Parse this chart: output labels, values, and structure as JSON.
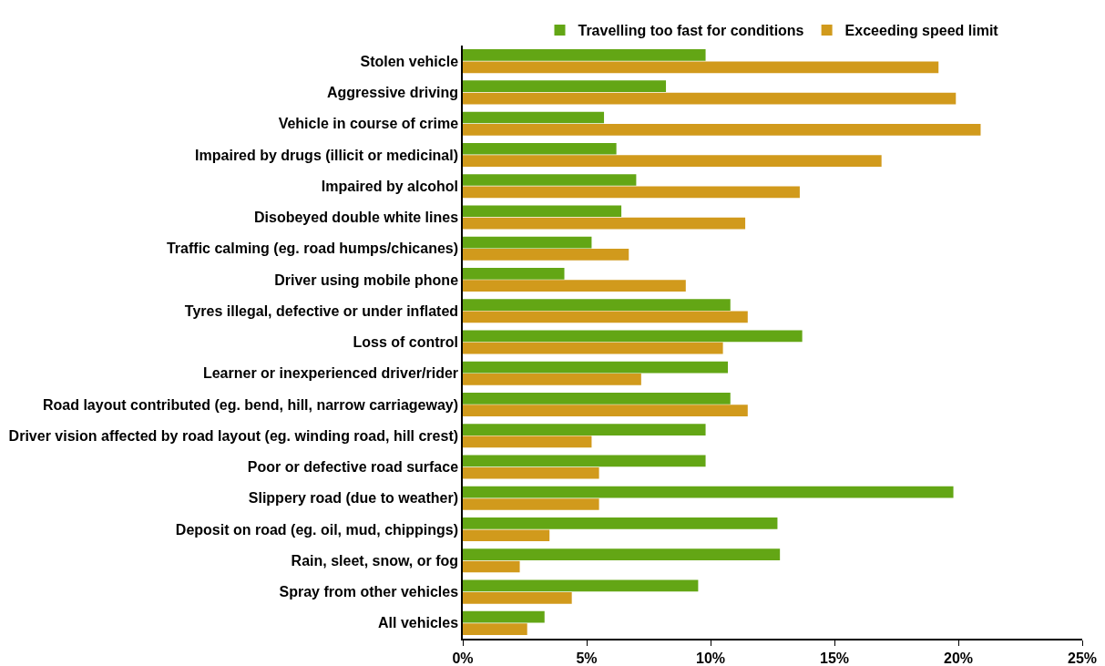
{
  "chart_data": {
    "type": "bar",
    "orientation": "horizontal",
    "categories": [
      "Stolen vehicle",
      "Aggressive driving",
      "Vehicle in course of crime",
      "Impaired by drugs (illicit or medicinal)",
      "Impaired by alcohol",
      "Disobeyed double white lines",
      "Traffic calming (eg. road humps/chicanes)",
      "Driver using mobile phone",
      "Tyres illegal, defective or under inflated",
      "Loss of control",
      "Learner or inexperienced driver/rider",
      "Road layout contributed (eg. bend, hill, narrow carriageway)",
      "Driver vision affected by road layout (eg. winding road, hill crest)",
      "Poor or defective road surface",
      "Slippery road (due to weather)",
      "Deposit on road (eg. oil, mud, chippings)",
      "Rain, sleet, snow, or fog",
      "Spray from other vehicles",
      "All vehicles"
    ],
    "series": [
      {
        "name": "Travelling too fast for conditions",
        "color": "#63a615",
        "values": [
          9.8,
          8.2,
          5.7,
          6.2,
          7.0,
          6.4,
          5.2,
          4.1,
          10.8,
          13.7,
          10.7,
          10.8,
          9.8,
          9.8,
          19.8,
          12.7,
          12.8,
          9.5,
          3.3
        ]
      },
      {
        "name": "Exceeding speed limit",
        "color": "#d19a1c",
        "values": [
          19.2,
          19.9,
          20.9,
          16.9,
          13.6,
          11.4,
          6.7,
          9.0,
          11.5,
          10.5,
          7.2,
          11.5,
          5.2,
          5.5,
          5.5,
          3.5,
          2.3,
          4.4,
          2.6
        ]
      }
    ],
    "xlim": [
      0,
      25
    ],
    "xticks": [
      {
        "value": 0,
        "label": "0%"
      },
      {
        "value": 5,
        "label": "5%"
      },
      {
        "value": 10,
        "label": "10%"
      },
      {
        "value": 15,
        "label": "15%"
      },
      {
        "value": 20,
        "label": "20%"
      },
      {
        "value": 25,
        "label": "25%"
      }
    ],
    "grid": false,
    "legend": "top"
  }
}
